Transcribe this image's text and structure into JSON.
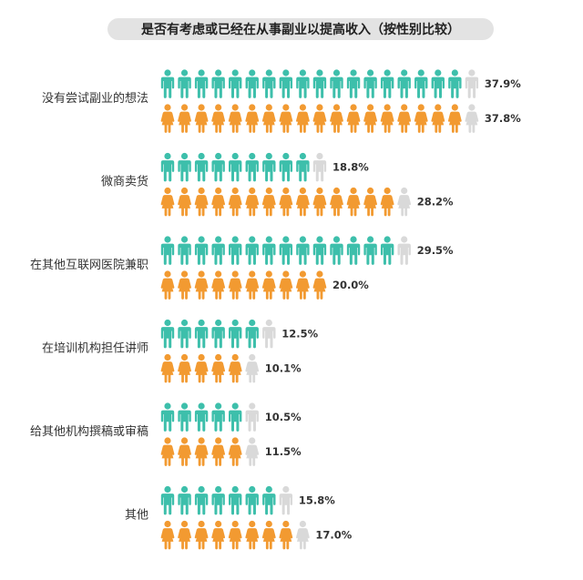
{
  "title": "是否有考虑或已经在从事副业以提高收入（按性别比较）",
  "colors": {
    "male": "#3dbfab",
    "female": "#f29a31",
    "remainder": "#d9d9d9",
    "title_bg": "#e3e3e3"
  },
  "icons": {
    "male": "person-male-icon",
    "female": "person-female-icon"
  },
  "chart_data": {
    "type": "pictograph-bar",
    "title": "是否有考虑或已经在从事副业以提高收入（按性别比较）",
    "unit_percent_per_icon": 2,
    "categories": [
      "没有尝试副业的想法",
      "微商卖货",
      "在其他互联网医院兼职",
      "在培训机构担任讲师",
      "给其他机构撰稿或审稿",
      "其他"
    ],
    "series": [
      {
        "key": "male",
        "values": [
          37.9,
          18.8,
          29.5,
          12.5,
          10.5,
          15.8
        ],
        "labels": [
          "37.9%",
          "18.8%",
          "29.5%",
          "12.5%",
          "10.5%",
          "15.8%"
        ]
      },
      {
        "key": "female",
        "values": [
          37.8,
          28.2,
          20.0,
          10.1,
          11.5,
          17.0
        ],
        "labels": [
          "37.8%",
          "28.2%",
          "20.0%",
          "10.1%",
          "11.5%",
          "17.0%"
        ]
      }
    ]
  }
}
